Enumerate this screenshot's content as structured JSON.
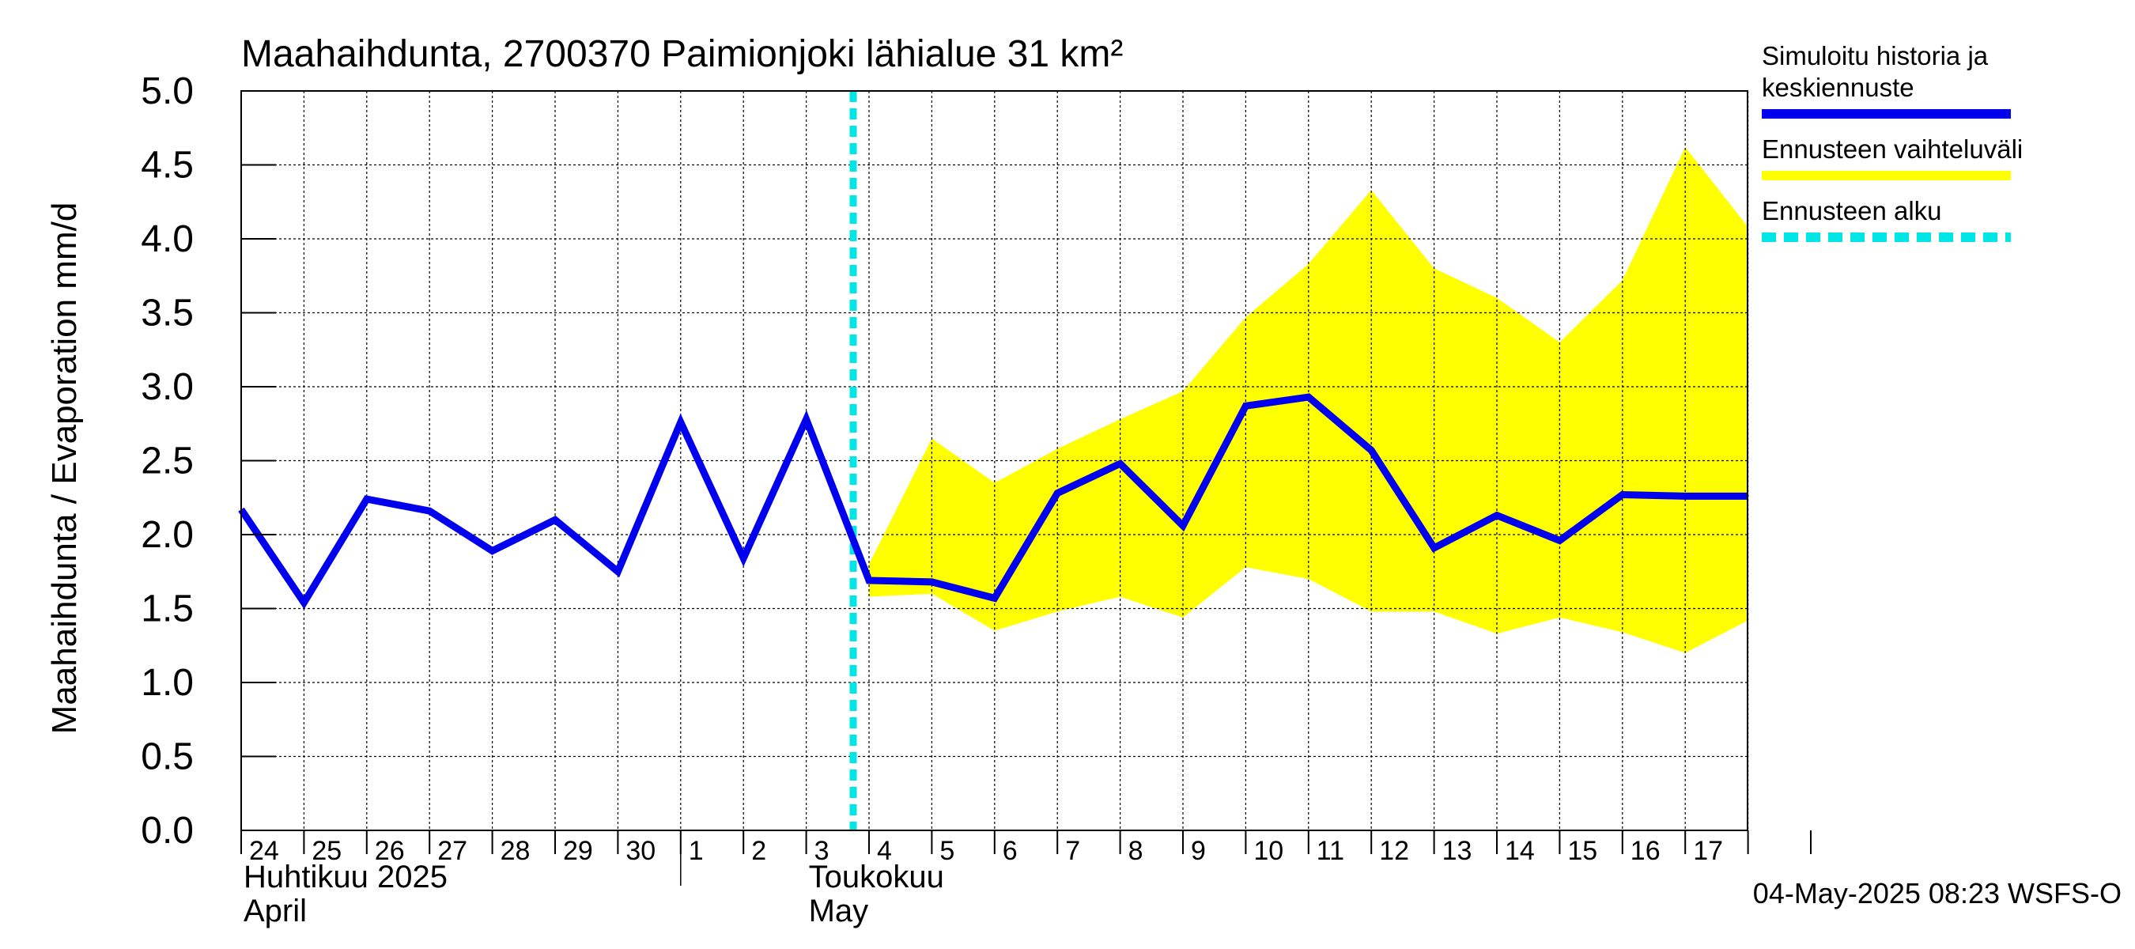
{
  "chart_data": {
    "type": "line",
    "title": "Maahaihdunta, 2700370 Paimionjoki lähialue 31 km²",
    "ylabel": "Maahaihdunta / Evaporation   mm/d",
    "ylim": [
      0,
      5
    ],
    "y_ticks": [
      "0.0",
      "0.5",
      "1.0",
      "1.5",
      "2.0",
      "2.5",
      "3.0",
      "3.5",
      "4.0",
      "4.5",
      "5.0"
    ],
    "x_tick_labels": [
      "24",
      "25",
      "26",
      "27",
      "28",
      "29",
      "30",
      "1",
      "2",
      "3",
      "4",
      "5",
      "6",
      "7",
      "8",
      "9",
      "10",
      "11",
      "12",
      "13",
      "14",
      "15",
      "16",
      "17"
    ],
    "months": [
      {
        "line1": "Huhtikuu  2025",
        "line2": "April"
      },
      {
        "line1": "Toukokuu",
        "line2": "May"
      }
    ],
    "grid": true,
    "forecast_start": "2025-05-04",
    "series": [
      {
        "name": "Simuloitu historia ja keskiennuste",
        "color": "#0000ee",
        "x": [
          "2025-04-24",
          "2025-04-25",
          "2025-04-26",
          "2025-04-27",
          "2025-04-28",
          "2025-04-29",
          "2025-04-30",
          "2025-05-01",
          "2025-05-02",
          "2025-05-03",
          "2025-05-04",
          "2025-05-05",
          "2025-05-06",
          "2025-05-07",
          "2025-05-08",
          "2025-05-09",
          "2025-05-10",
          "2025-05-11",
          "2025-05-12",
          "2025-05-13",
          "2025-05-14",
          "2025-05-15",
          "2025-05-16",
          "2025-05-17",
          "2025-05-18"
        ],
        "values": [
          2.17,
          1.54,
          2.24,
          2.16,
          1.89,
          2.1,
          1.75,
          2.76,
          1.84,
          2.78,
          1.69,
          1.68,
          1.57,
          2.28,
          2.48,
          2.06,
          2.87,
          2.93,
          2.57,
          1.91,
          2.13,
          1.96,
          2.27,
          2.26,
          2.26
        ]
      },
      {
        "name": "Ennusteen vaihteluväli",
        "color": "#ffff00",
        "x": [
          "2025-05-04",
          "2025-05-05",
          "2025-05-06",
          "2025-05-07",
          "2025-05-08",
          "2025-05-09",
          "2025-05-10",
          "2025-05-11",
          "2025-05-12",
          "2025-05-13",
          "2025-05-14",
          "2025-05-15",
          "2025-05-16",
          "2025-05-17",
          "2025-05-18"
        ],
        "upper": [
          1.8,
          2.65,
          2.35,
          2.58,
          2.78,
          2.97,
          3.47,
          3.83,
          4.33,
          3.8,
          3.6,
          3.3,
          3.72,
          4.62,
          4.08
        ],
        "lower": [
          1.58,
          1.6,
          1.35,
          1.48,
          1.58,
          1.44,
          1.78,
          1.7,
          1.48,
          1.48,
          1.33,
          1.44,
          1.34,
          1.2,
          1.42
        ]
      }
    ],
    "legend": {
      "placement": "right",
      "items": [
        {
          "line1": "Simuloitu historia ja",
          "line2": "keskiennuste",
          "color": "#0000ee",
          "style": "solid"
        },
        {
          "line1": "Ennusteen vaihteluväli",
          "line2": "",
          "color": "#ffff00",
          "style": "solid"
        },
        {
          "line1": "Ennusteen alku",
          "line2": "",
          "color": "#00e5e5",
          "style": "dashed"
        }
      ]
    },
    "footer": "04-May-2025 08:23 WSFS-O"
  }
}
